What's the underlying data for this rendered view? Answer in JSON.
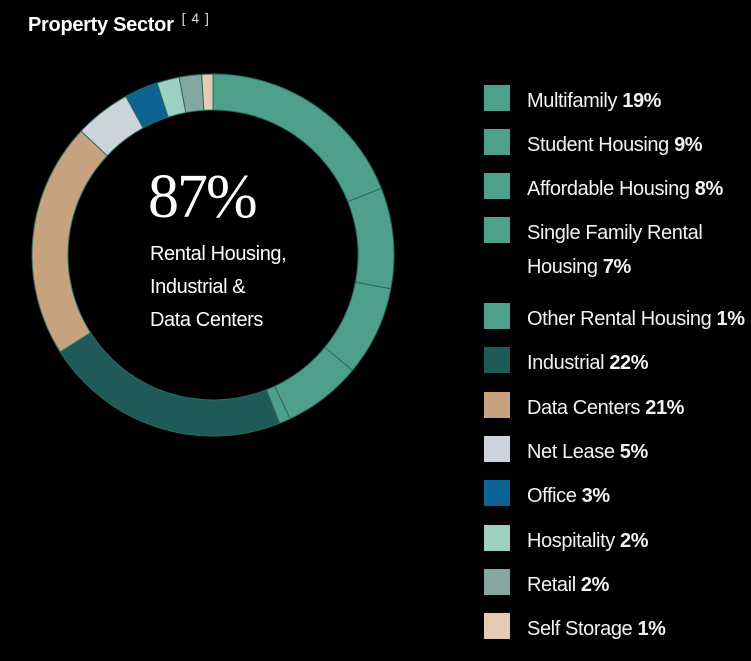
{
  "title": "Property Sector",
  "title_note": "[ 4 ]",
  "center": {
    "value": "87%",
    "lines": [
      "Rental Housing,",
      "Industrial &",
      "Data Centers"
    ]
  },
  "chart_data": {
    "type": "pie",
    "title": "Property Sector",
    "categories": [
      "Multifamily",
      "Student Housing",
      "Affordable Housing",
      "Single Family Rental Housing",
      "Other Rental Housing",
      "Industrial",
      "Data Centers",
      "Net Lease",
      "Office",
      "Hospitality",
      "Retail",
      "Self Storage"
    ],
    "values": [
      19,
      9,
      8,
      7,
      1,
      22,
      21,
      5,
      3,
      2,
      2,
      1
    ],
    "colors": [
      "#4FA08A",
      "#4FA08A",
      "#4FA08A",
      "#4FA08A",
      "#4FA08A",
      "#1F5A58",
      "#C7A27E",
      "#CDD3DB",
      "#0D6494",
      "#9ED0C2",
      "#85A7A2",
      "#E6CBB3"
    ],
    "center_label": "87%",
    "legend_position": "right"
  },
  "legend": [
    {
      "name": "Multifamily",
      "pct": "19%"
    },
    {
      "name": "Student Housing",
      "pct": "9%"
    },
    {
      "name": "Affordable Housing",
      "pct": "8%"
    },
    {
      "name": "Single Family Rental",
      "name2": "Housing",
      "pct": "7%"
    },
    {
      "name": "Other Rental Housing",
      "pct": "1%"
    },
    {
      "name": "Industrial",
      "pct": "22%"
    },
    {
      "name": "Data Centers",
      "pct": "21%"
    },
    {
      "name": "Net Lease",
      "pct": "5%"
    },
    {
      "name": "Office",
      "pct": "3%"
    },
    {
      "name": "Hospitality",
      "pct": "2%"
    },
    {
      "name": "Retail",
      "pct": "2%"
    },
    {
      "name": "Self Storage",
      "pct": "1%"
    }
  ]
}
